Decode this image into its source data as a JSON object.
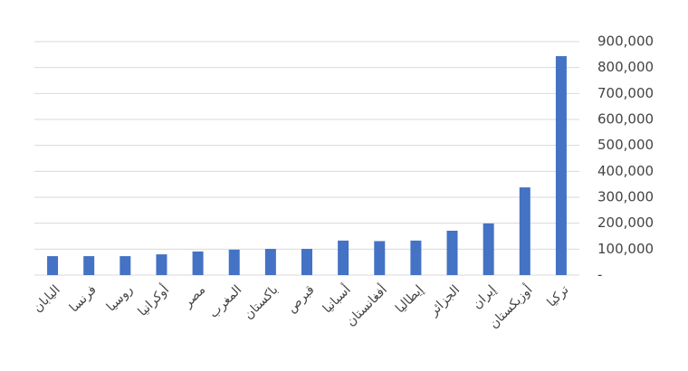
{
  "chart_data": {
    "type": "bar",
    "categories": [
      "اليابان",
      "فرنسا",
      "روسيا",
      "أوكرانيا",
      "مصر",
      "المغرب",
      "باكستان",
      "قبرص",
      "أسبانيا",
      "أفغانستان",
      "إيطاليا",
      "الجزائر",
      "إيران",
      "أوزبكستان",
      "تركيا"
    ],
    "values": [
      73000,
      73000,
      73000,
      80000,
      91000,
      98000,
      101000,
      101000,
      133000,
      131000,
      133000,
      171000,
      199000,
      338000,
      844000
    ],
    "color": "#4472c4",
    "ylim": [
      0,
      900000
    ],
    "yticks": [
      {
        "value": 0,
        "label": "-"
      },
      {
        "value": 100000,
        "label": "100,000"
      },
      {
        "value": 200000,
        "label": "200,000"
      },
      {
        "value": 300000,
        "label": "300,000"
      },
      {
        "value": 400000,
        "label": "400,000"
      },
      {
        "value": 500000,
        "label": "500,000"
      },
      {
        "value": 600000,
        "label": "600,000"
      },
      {
        "value": 700000,
        "label": "700,000"
      },
      {
        "value": 800000,
        "label": "800,000"
      },
      {
        "value": 900000,
        "label": "900,000"
      }
    ],
    "grid": true
  }
}
